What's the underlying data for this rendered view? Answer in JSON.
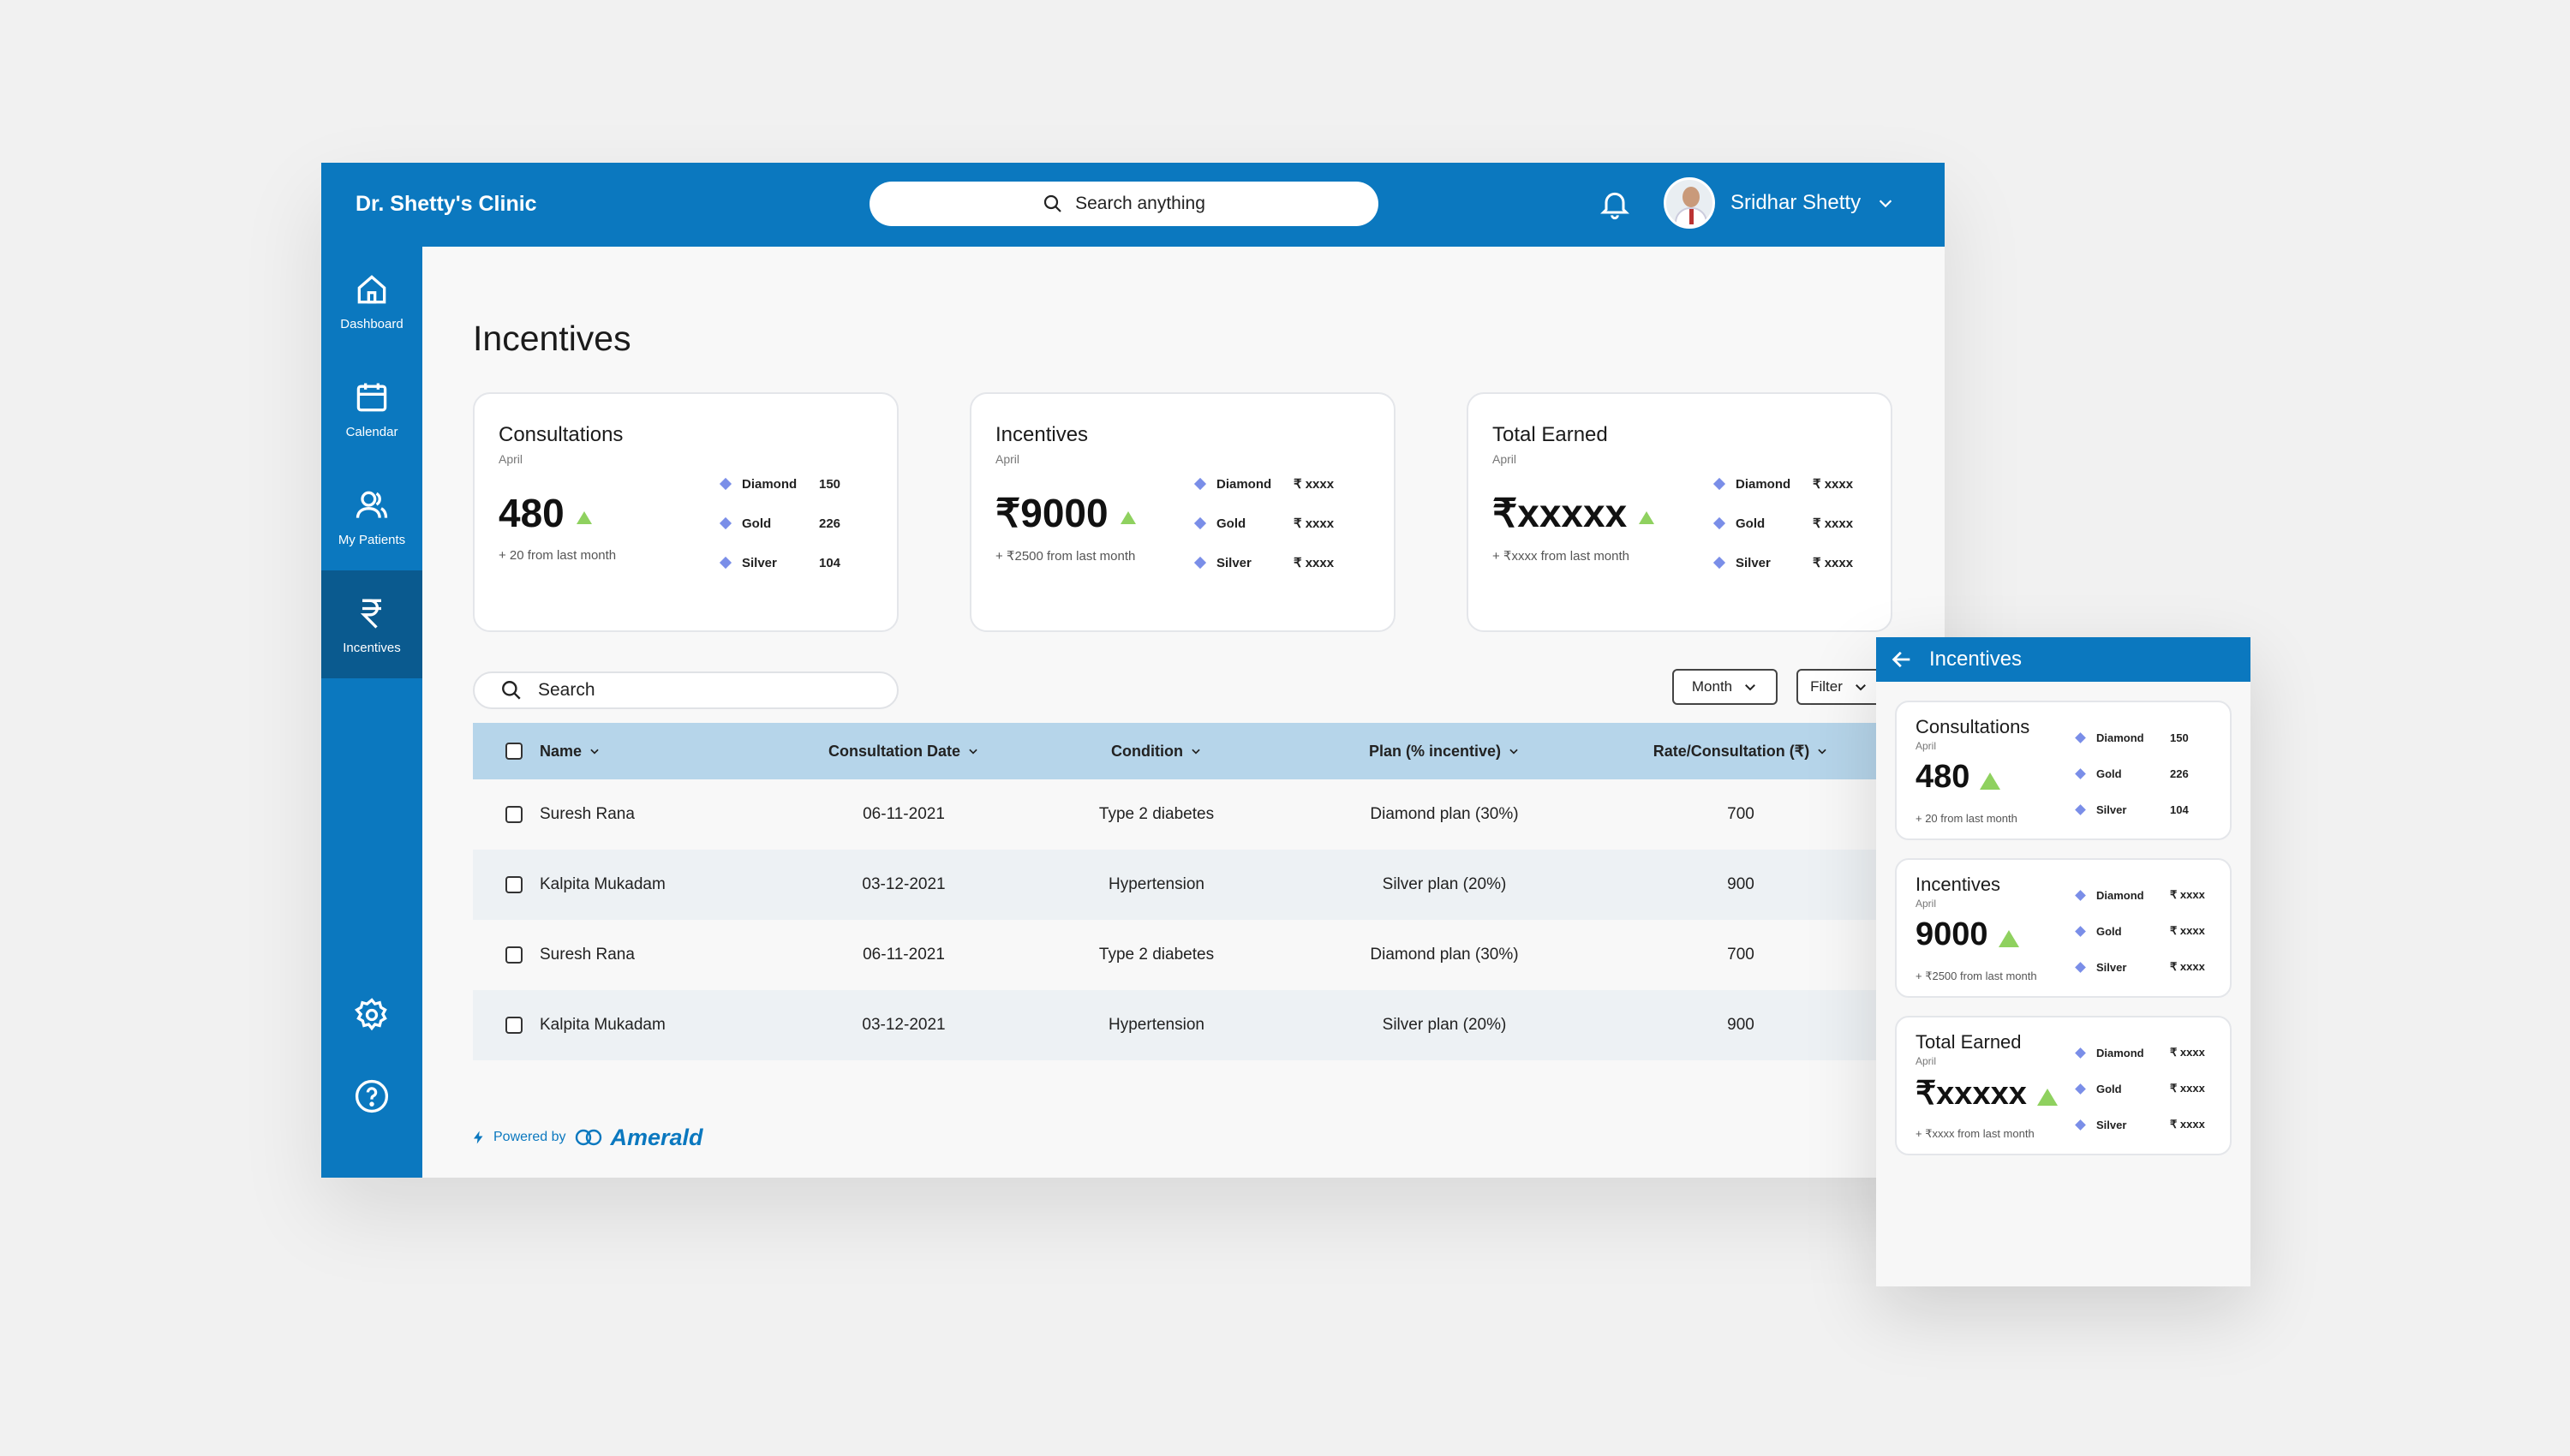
{
  "header": {
    "clinic_name": "Dr. Shetty's Clinic",
    "search_label": "Search anything",
    "user_name": "Sridhar Shetty"
  },
  "sidebar": {
    "items": [
      {
        "label": "Dashboard",
        "icon": "home-icon"
      },
      {
        "label": "Calendar",
        "icon": "calendar-icon"
      },
      {
        "label": "My Patients",
        "icon": "users-icon"
      },
      {
        "label": "Incentives",
        "icon": "rupee-icon",
        "active": true
      }
    ],
    "bottom_icons": [
      "gear-icon",
      "help-icon"
    ]
  },
  "page": {
    "title": "Incentives"
  },
  "cards": [
    {
      "title": "Consultations",
      "period": "April",
      "value": "480",
      "change": "+ 20 from last month",
      "tiers": [
        {
          "name": "Diamond",
          "value": "150"
        },
        {
          "name": "Gold",
          "value": "226"
        },
        {
          "name": "Silver",
          "value": "104"
        }
      ]
    },
    {
      "title": "Incentives",
      "period": "April",
      "value": "₹9000",
      "change": "+ ₹2500 from last month",
      "tiers": [
        {
          "name": "Diamond",
          "value": "₹ xxxx"
        },
        {
          "name": "Gold",
          "value": "₹ xxxx"
        },
        {
          "name": "Silver",
          "value": "₹ xxxx"
        }
      ]
    },
    {
      "title": "Total Earned",
      "period": "April",
      "value": "₹xxxxx",
      "change": "+ ₹xxxx from last month",
      "tiers": [
        {
          "name": "Diamond",
          "value": "₹ xxxx"
        },
        {
          "name": "Gold",
          "value": "₹ xxxx"
        },
        {
          "name": "Silver",
          "value": "₹ xxxx"
        }
      ]
    }
  ],
  "toolbar": {
    "search_label": "Search",
    "month_label": "Month",
    "filter_label": "Filter"
  },
  "table": {
    "columns": [
      "Name",
      "Consultation Date",
      "Condition",
      "Plan (% incentive)",
      "Rate/Consultation (₹)"
    ],
    "rows": [
      {
        "name": "Suresh Rana",
        "date": "06-11-2021",
        "condition": "Type 2 diabetes",
        "plan": "Diamond plan (30%)",
        "rate": "700"
      },
      {
        "name": "Kalpita Mukadam",
        "date": "03-12-2021",
        "condition": "Hypertension",
        "plan": "Silver plan (20%)",
        "rate": "900"
      },
      {
        "name": "Suresh Rana",
        "date": "06-11-2021",
        "condition": "Type 2 diabetes",
        "plan": "Diamond plan (30%)",
        "rate": "700"
      },
      {
        "name": "Kalpita Mukadam",
        "date": "03-12-2021",
        "condition": "Hypertension",
        "plan": "Silver plan (20%)",
        "rate": "900"
      }
    ]
  },
  "footer": {
    "powered_by": "Powered by",
    "brand": "Amerald"
  },
  "mobile": {
    "title": "Incentives",
    "cards": [
      {
        "title": "Consultations",
        "period": "April",
        "value": "480",
        "change": "+ 20 from last month",
        "tiers": [
          {
            "name": "Diamond",
            "value": "150"
          },
          {
            "name": "Gold",
            "value": "226"
          },
          {
            "name": "Silver",
            "value": "104"
          }
        ]
      },
      {
        "title": "Incentives",
        "period": "April",
        "value": "9000",
        "change": "+ ₹2500 from last month",
        "tiers": [
          {
            "name": "Diamond",
            "value": "₹ xxxx"
          },
          {
            "name": "Gold",
            "value": "₹ xxxx"
          },
          {
            "name": "Silver",
            "value": "₹ xxxx"
          }
        ]
      },
      {
        "title": "Total Earned",
        "period": "April",
        "value": "₹xxxxx",
        "change": "+ ₹xxxx from last month",
        "tiers": [
          {
            "name": "Diamond",
            "value": "₹ xxxx"
          },
          {
            "name": "Gold",
            "value": "₹ xxxx"
          },
          {
            "name": "Silver",
            "value": "₹ xxxx"
          }
        ]
      }
    ]
  },
  "colors": {
    "primary": "#0b78bf",
    "sidebar_active": "#0a5a8f",
    "table_header": "#b6d5ea",
    "trend_up": "#8fd15f",
    "tier_diamond": "#7a8ee8"
  }
}
